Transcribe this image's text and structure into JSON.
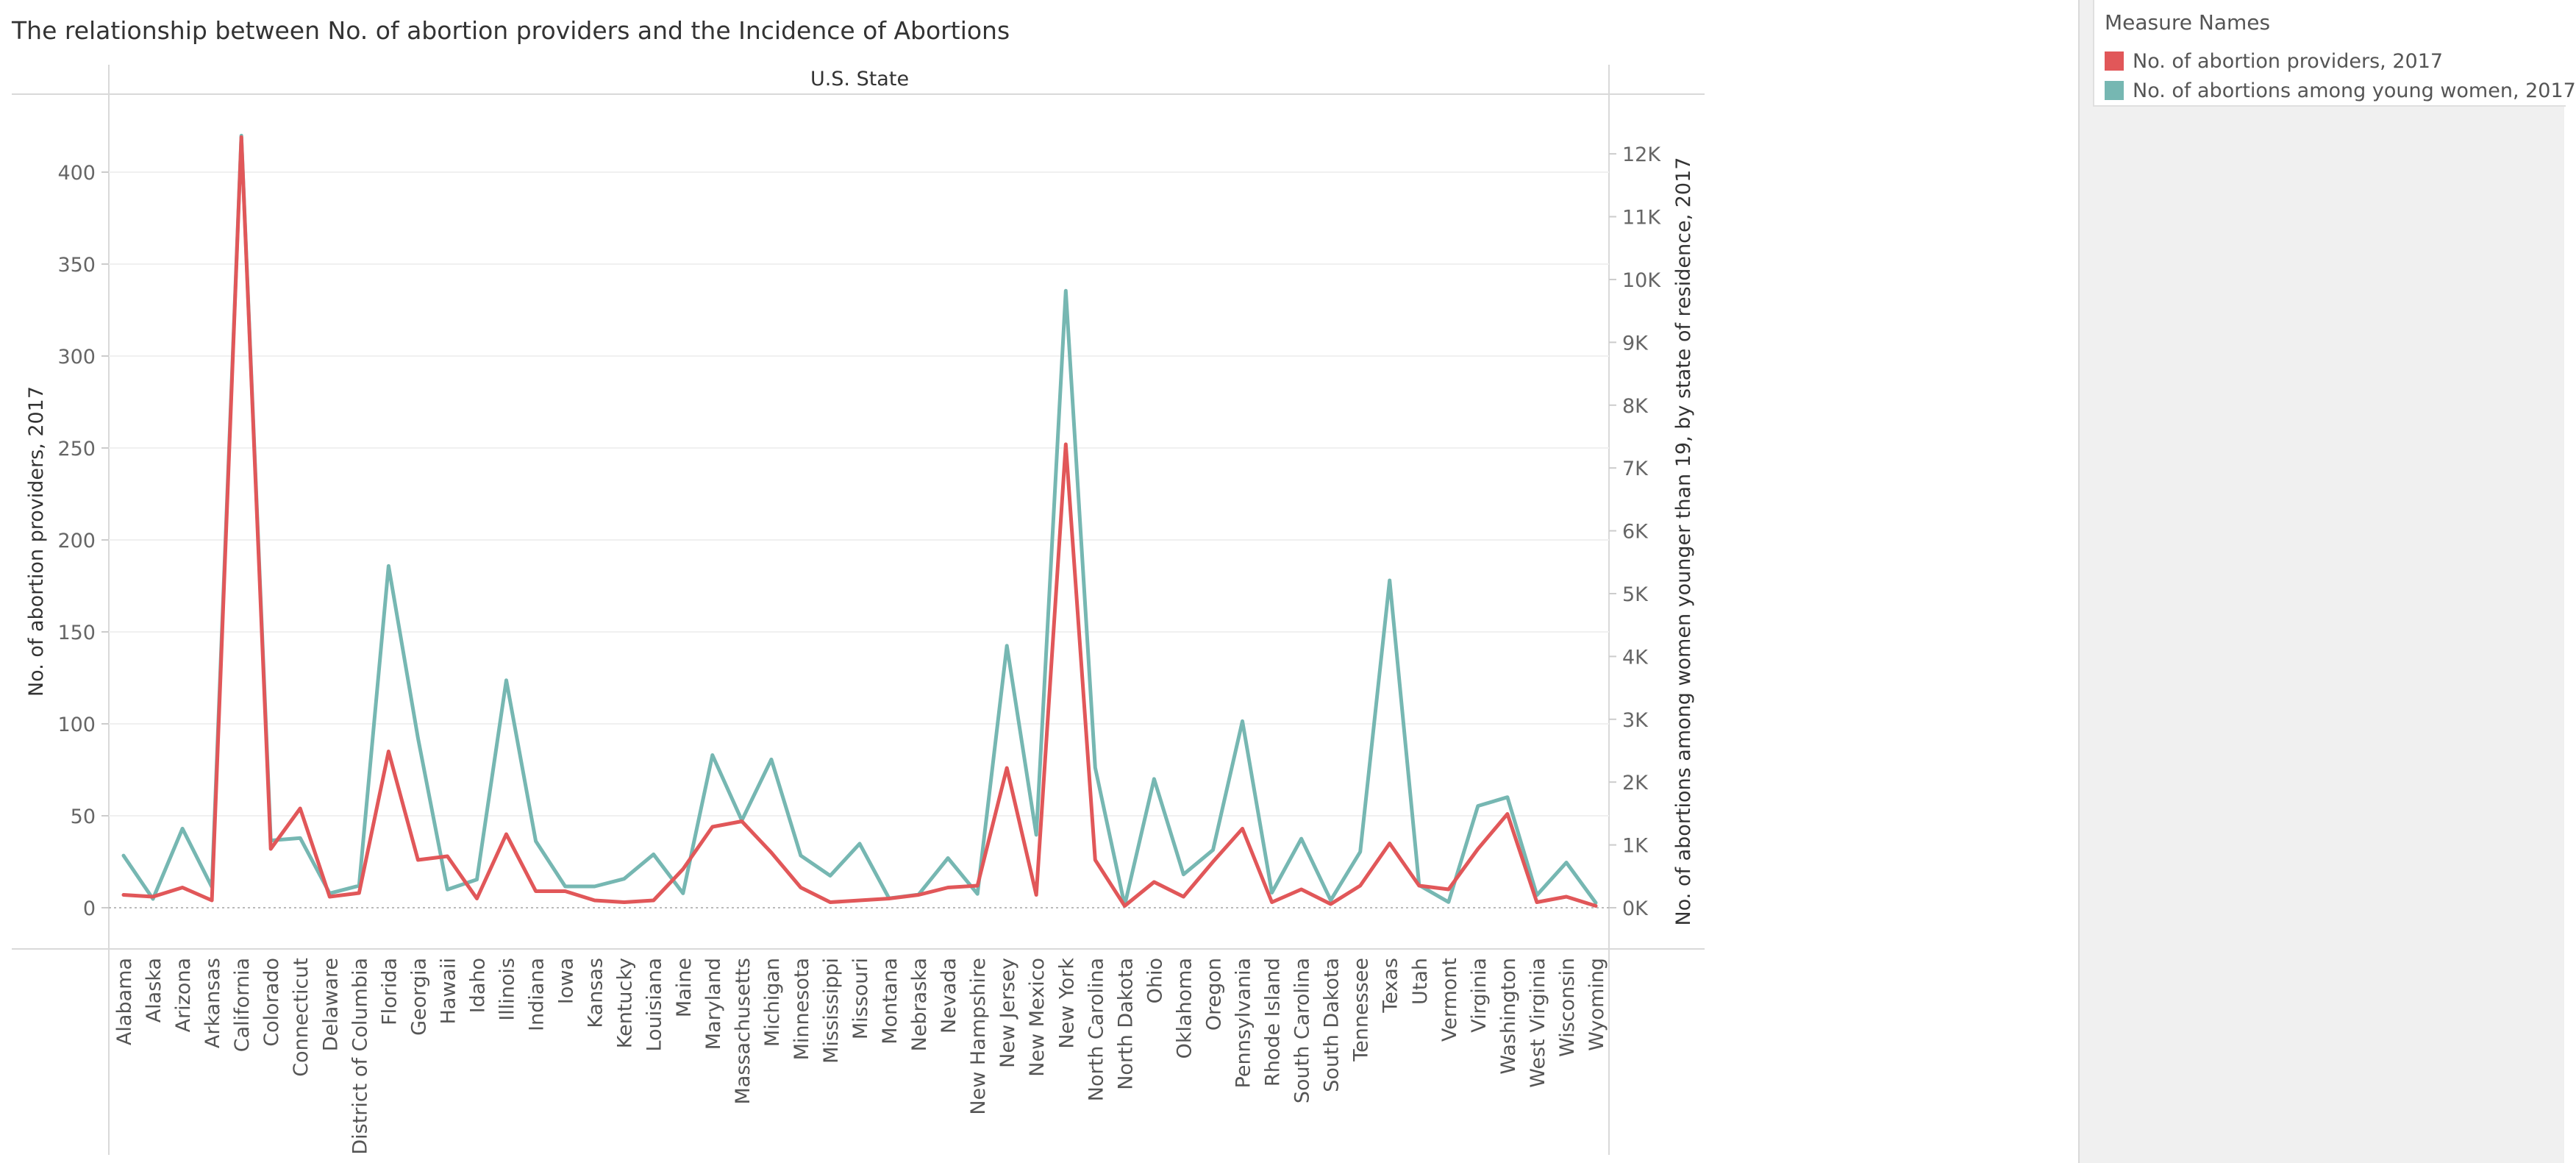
{
  "title": "The relationship between No. of abortion providers and the Incidence of Abortions",
  "legend": {
    "title": "Measure Names",
    "items": [
      {
        "label": "No. of abortion providers, 2017",
        "color": "#e15759"
      },
      {
        "label": "No. of abortions among young women, 2017",
        "color": "#76b7b2"
      }
    ]
  },
  "chart_data": {
    "type": "line",
    "xlabel": "U.S. State",
    "ylabel": "No. of abortion providers, 2017",
    "y2label": "No. of abortions among women younger than 19, by state of residence, 2017",
    "ylim": [
      0,
      440
    ],
    "y2lim": [
      0,
      12880
    ],
    "yticks": [
      0,
      50,
      100,
      150,
      200,
      250,
      300,
      350,
      400
    ],
    "y2ticks": [
      0,
      1000,
      2000,
      3000,
      4000,
      5000,
      6000,
      7000,
      8000,
      9000,
      10000,
      11000,
      12000
    ],
    "y2ticklabels": [
      "0K",
      "1K",
      "2K",
      "3K",
      "4K",
      "5K",
      "6K",
      "7K",
      "8K",
      "9K",
      "10K",
      "11K",
      "12K"
    ],
    "grid": true,
    "categories": [
      "Alabama",
      "Alaska",
      "Arizona",
      "Arkansas",
      "California",
      "Colorado",
      "Connecticut",
      "Delaware",
      "District of Columbia",
      "Florida",
      "Georgia",
      "Hawaii",
      "Idaho",
      "Illinois",
      "Indiana",
      "Iowa",
      "Kansas",
      "Kentucky",
      "Louisiana",
      "Maine",
      "Maryland",
      "Massachusetts",
      "Michigan",
      "Minnesota",
      "Mississippi",
      "Missouri",
      "Montana",
      "Nebraska",
      "Nevada",
      "New Hampshire",
      "New Jersey",
      "New Mexico",
      "New York",
      "North Carolina",
      "North Dakota",
      "Ohio",
      "Oklahoma",
      "Oregon",
      "Pennsylvania",
      "Rhode Island",
      "South Carolina",
      "South Dakota",
      "Tennessee",
      "Texas",
      "Utah",
      "Vermont",
      "Virginia",
      "Washington",
      "West Virginia",
      "Wisconsin",
      "Wyoming"
    ],
    "series": [
      {
        "name": "No. of abortion providers, 2017",
        "axis": "left",
        "color": "#e15759",
        "values": [
          7,
          6,
          11,
          4,
          419,
          32,
          54,
          6,
          8,
          85,
          26,
          28,
          5,
          40,
          9,
          9,
          4,
          3,
          4,
          21,
          44,
          47,
          30,
          11,
          3,
          4,
          5,
          7,
          11,
          12,
          76,
          7,
          252,
          26,
          1,
          14,
          6,
          25,
          43,
          3,
          10,
          2,
          12,
          35,
          12,
          10,
          32,
          51,
          3,
          6,
          1
        ]
      },
      {
        "name": "No. of abortions among young women, 2017",
        "axis": "right",
        "color": "#76b7b2",
        "values": [
          830,
          140,
          1260,
          330,
          12290,
          1070,
          1110,
          230,
          350,
          5440,
          2700,
          290,
          450,
          3620,
          1060,
          340,
          340,
          460,
          850,
          230,
          2430,
          1390,
          2360,
          830,
          510,
          1020,
          150,
          210,
          790,
          220,
          4170,
          1160,
          9820,
          2230,
          40,
          2050,
          530,
          920,
          2970,
          240,
          1100,
          120,
          890,
          5210,
          360,
          90,
          1620,
          1760,
          200,
          720,
          80
        ]
      }
    ]
  }
}
